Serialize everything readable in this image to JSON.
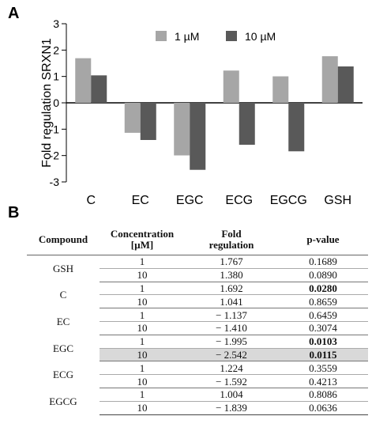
{
  "panel_labels": {
    "chart": "A",
    "table": "B"
  },
  "chart_data": {
    "type": "bar",
    "title": "",
    "xlabel": "",
    "ylabel": "Fold regulation SRXN1",
    "ylim": [
      -3,
      3
    ],
    "yticks": [
      -3,
      -2,
      -1,
      0,
      1,
      2,
      3
    ],
    "categories": [
      "C",
      "EC",
      "EGC",
      "ECG",
      "EGCG",
      "GSH"
    ],
    "series": [
      {
        "name": "1 µM",
        "color": "#a6a6a6",
        "values": [
          1.692,
          -1.137,
          -1.995,
          1.224,
          1.004,
          1.767
        ]
      },
      {
        "name": "10 µM",
        "color": "#595959",
        "values": [
          1.041,
          -1.41,
          -2.542,
          -1.592,
          -1.839,
          1.38
        ]
      }
    ],
    "legend_position": "top-center",
    "grid": false
  },
  "table": {
    "headers": {
      "compound": "Compound",
      "concentration_line1": "Concentration",
      "concentration_line2": "[µM]",
      "fold_line1": "Fold",
      "fold_line2": "regulation",
      "pvalue": "p-value"
    },
    "groups": [
      {
        "compound": "GSH",
        "rows": [
          {
            "conc": "1",
            "fold": "1.767",
            "p": "0.1689",
            "sig": false
          },
          {
            "conc": "10",
            "fold": "1.380",
            "p": "0.0890",
            "sig": false
          }
        ]
      },
      {
        "compound": "C",
        "rows": [
          {
            "conc": "1",
            "fold": "1.692",
            "p": "0.0280",
            "sig": true
          },
          {
            "conc": "10",
            "fold": "1.041",
            "p": "0.8659",
            "sig": false
          }
        ]
      },
      {
        "compound": "EC",
        "rows": [
          {
            "conc": "1",
            "fold": "− 1.137",
            "p": "0.6459",
            "sig": false
          },
          {
            "conc": "10",
            "fold": "− 1.410",
            "p": "0.3074",
            "sig": false
          }
        ]
      },
      {
        "compound": "EGC",
        "rows": [
          {
            "conc": "1",
            "fold": "− 1.995",
            "p": "0.0103",
            "sig": true
          },
          {
            "conc": "10",
            "fold": "− 2.542",
            "p": "0.0115",
            "sig": true,
            "highlight": true
          }
        ]
      },
      {
        "compound": "ECG",
        "rows": [
          {
            "conc": "1",
            "fold": "1.224",
            "p": "0.3559",
            "sig": false
          },
          {
            "conc": "10",
            "fold": "− 1.592",
            "p": "0.4213",
            "sig": false
          }
        ]
      },
      {
        "compound": "EGCG",
        "rows": [
          {
            "conc": "1",
            "fold": "1.004",
            "p": "0.8086",
            "sig": false
          },
          {
            "conc": "10",
            "fold": "− 1.839",
            "p": "0.0636",
            "sig": false
          }
        ]
      }
    ]
  }
}
